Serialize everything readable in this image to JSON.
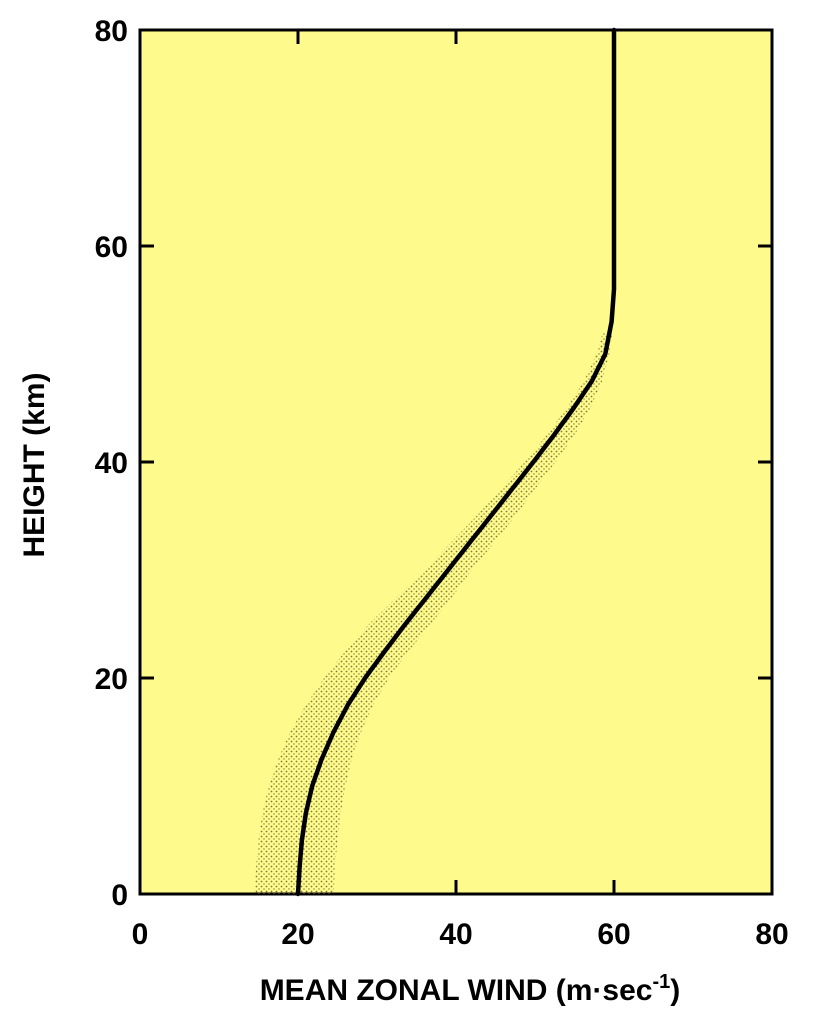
{
  "chart_data": {
    "type": "line",
    "title": "",
    "xlabel": "MEAN ZONAL WIND (m·sec",
    "xlabel_sup": "-1",
    "xlabel_close": ")",
    "ylabel": "HEIGHT (km)",
    "xlim": [
      0,
      80
    ],
    "ylim": [
      0,
      80
    ],
    "xticks": [
      "0",
      "20",
      "40",
      "60",
      "80"
    ],
    "yticks": [
      "0",
      "20",
      "40",
      "60",
      "80"
    ],
    "grid": false,
    "legend": "none",
    "colors": {
      "plot_background": "#FFFA8C",
      "line": "#000000",
      "band": "#7A7A3A"
    },
    "series": [
      {
        "x": [
          20.0,
          20.2,
          20.5,
          21.0,
          21.8,
          23.0,
          24.5,
          26.3,
          28.5,
          31.0,
          33.6,
          36.3,
          39.0,
          41.7,
          44.4,
          47.1,
          49.8,
          52.4,
          54.9,
          57.2,
          58.9,
          59.7,
          60.0,
          60.0
        ],
        "y": [
          0,
          2.5,
          5,
          7.5,
          10,
          12.5,
          15,
          17.5,
          20,
          22.5,
          25,
          27.5,
          30,
          32.5,
          35,
          37.5,
          40,
          42.5,
          45,
          47.5,
          50,
          53,
          56,
          80
        ]
      }
    ],
    "band": {
      "y": [
        0,
        2.5,
        5,
        7.5,
        10,
        12.5,
        15,
        17.5,
        20,
        22.5,
        25,
        27.5,
        30,
        32.5,
        35,
        37.5,
        40,
        42.5,
        45,
        47.5,
        50,
        52
      ],
      "x_low": [
        14.5,
        14.7,
        15.0,
        15.5,
        16.3,
        17.5,
        19.0,
        21.0,
        23.3,
        26.0,
        29.0,
        32.5,
        36.0,
        39.3,
        42.6,
        45.7,
        48.7,
        51.5,
        54.0,
        56.2,
        57.8,
        58.6
      ],
      "x_high": [
        24.5,
        24.7,
        25.0,
        25.4,
        26.0,
        26.8,
        28.0,
        29.5,
        31.5,
        34.0,
        36.8,
        39.5,
        42.0,
        44.8,
        47.5,
        50.0,
        52.6,
        55.0,
        57.0,
        58.5,
        59.4,
        59.8
      ]
    }
  }
}
